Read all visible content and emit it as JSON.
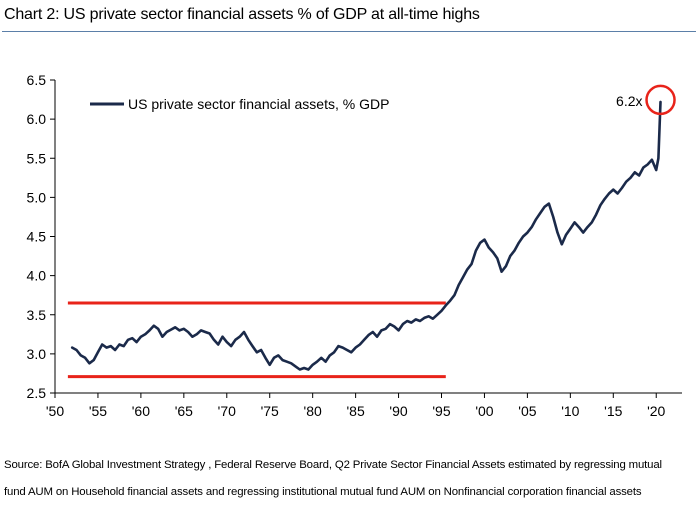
{
  "title": "Chart 2: US private sector financial assets % of GDP at all-time highs",
  "source_lines": [
    "Source: BofA Global Investment Strategy , Federal Reserve Board, Q2 Private Sector Financial Assets estimated by regressing mutual",
    "fund AUM on Household financial assets and regressing institutional mutual fund AUM on Nonfinancial corporation financial assets"
  ],
  "chart_data": {
    "type": "line",
    "title": "Chart 2: US private sector financial assets % of GDP at all-time highs",
    "xlabel": "",
    "ylabel": "",
    "xlim": [
      1950,
      2023
    ],
    "ylim": [
      2.5,
      6.5
    ],
    "grid": false,
    "legend_position": "top-left",
    "x_ticks": [
      1950,
      1955,
      1960,
      1965,
      1970,
      1975,
      1980,
      1985,
      1990,
      1995,
      2000,
      2005,
      2010,
      2015,
      2020
    ],
    "x_tick_labels": [
      "'50",
      "'55",
      "'60",
      "'65",
      "'70",
      "'75",
      "'80",
      "'85",
      "'90",
      "'95",
      "'00",
      "'05",
      "'10",
      "'15",
      "'20"
    ],
    "y_ticks": [
      2.5,
      3.0,
      3.5,
      4.0,
      4.5,
      5.0,
      5.5,
      6.0,
      6.5
    ],
    "y_tick_labels": [
      "2.5",
      "3.0",
      "3.5",
      "4.0",
      "4.5",
      "5.0",
      "5.5",
      "6.0",
      "6.5"
    ],
    "series": [
      {
        "name": "US private sector financial assets, % GDP",
        "color": "#1b2a4a",
        "x": [
          1952.0,
          1952.5,
          1953.0,
          1953.5,
          1954.0,
          1954.5,
          1955.0,
          1955.5,
          1956.0,
          1956.5,
          1957.0,
          1957.5,
          1958.0,
          1958.5,
          1959.0,
          1959.5,
          1960.0,
          1960.5,
          1961.0,
          1961.5,
          1962.0,
          1962.5,
          1963.0,
          1963.5,
          1964.0,
          1964.5,
          1965.0,
          1965.5,
          1966.0,
          1966.5,
          1967.0,
          1967.5,
          1968.0,
          1968.5,
          1969.0,
          1969.5,
          1970.0,
          1970.5,
          1971.0,
          1971.5,
          1972.0,
          1972.5,
          1973.0,
          1973.5,
          1974.0,
          1974.5,
          1975.0,
          1975.5,
          1976.0,
          1976.5,
          1977.0,
          1977.5,
          1978.0,
          1978.5,
          1979.0,
          1979.5,
          1980.0,
          1980.5,
          1981.0,
          1981.5,
          1982.0,
          1982.5,
          1983.0,
          1983.5,
          1984.0,
          1984.5,
          1985.0,
          1985.5,
          1986.0,
          1986.5,
          1987.0,
          1987.5,
          1988.0,
          1988.5,
          1989.0,
          1989.5,
          1990.0,
          1990.5,
          1991.0,
          1991.5,
          1992.0,
          1992.5,
          1993.0,
          1993.5,
          1994.0,
          1994.5,
          1995.0,
          1995.5,
          1996.0,
          1996.5,
          1997.0,
          1997.5,
          1998.0,
          1998.5,
          1999.0,
          1999.5,
          2000.0,
          2000.5,
          2001.0,
          2001.5,
          2002.0,
          2002.5,
          2003.0,
          2003.5,
          2004.0,
          2004.5,
          2005.0,
          2005.5,
          2006.0,
          2006.5,
          2007.0,
          2007.5,
          2008.0,
          2008.5,
          2009.0,
          2009.5,
          2010.0,
          2010.5,
          2011.0,
          2011.5,
          2012.0,
          2012.5,
          2013.0,
          2013.5,
          2014.0,
          2014.5,
          2015.0,
          2015.5,
          2016.0,
          2016.5,
          2017.0,
          2017.5,
          2018.0,
          2018.5,
          2019.0,
          2019.5,
          2020.0,
          2020.25,
          2020.5
        ],
        "values": [
          3.08,
          3.05,
          2.98,
          2.95,
          2.88,
          2.92,
          3.02,
          3.12,
          3.08,
          3.1,
          3.05,
          3.12,
          3.1,
          3.18,
          3.2,
          3.15,
          3.22,
          3.25,
          3.3,
          3.36,
          3.32,
          3.22,
          3.28,
          3.31,
          3.34,
          3.3,
          3.32,
          3.28,
          3.22,
          3.25,
          3.3,
          3.28,
          3.26,
          3.18,
          3.12,
          3.22,
          3.15,
          3.1,
          3.18,
          3.22,
          3.28,
          3.18,
          3.1,
          3.02,
          3.05,
          2.95,
          2.86,
          2.95,
          2.98,
          2.92,
          2.9,
          2.88,
          2.84,
          2.8,
          2.82,
          2.8,
          2.86,
          2.9,
          2.95,
          2.9,
          2.98,
          3.02,
          3.1,
          3.08,
          3.05,
          3.02,
          3.08,
          3.12,
          3.18,
          3.24,
          3.28,
          3.22,
          3.3,
          3.32,
          3.38,
          3.35,
          3.3,
          3.38,
          3.42,
          3.4,
          3.44,
          3.42,
          3.46,
          3.48,
          3.45,
          3.5,
          3.55,
          3.62,
          3.68,
          3.75,
          3.88,
          3.98,
          4.08,
          4.15,
          4.32,
          4.42,
          4.46,
          4.36,
          4.3,
          4.22,
          4.05,
          4.12,
          4.25,
          4.32,
          4.42,
          4.5,
          4.55,
          4.62,
          4.72,
          4.8,
          4.88,
          4.92,
          4.75,
          4.55,
          4.4,
          4.52,
          4.6,
          4.68,
          4.62,
          4.55,
          4.62,
          4.68,
          4.78,
          4.9,
          4.98,
          5.05,
          5.1,
          5.05,
          5.12,
          5.2,
          5.25,
          5.32,
          5.28,
          5.38,
          5.42,
          5.48,
          5.35,
          5.5,
          6.22
        ]
      }
    ],
    "reference_lines": [
      {
        "y": 3.65,
        "x_start": 1951.5,
        "x_end": 1995.5,
        "color": "#e8231a"
      },
      {
        "y": 2.71,
        "x_start": 1951.5,
        "x_end": 1995.5,
        "color": "#e8231a"
      }
    ],
    "annotations": [
      {
        "text": "6.2x",
        "x": 2020.5,
        "y": 6.22,
        "marker": "circle",
        "marker_color": "#e8231a"
      }
    ]
  }
}
